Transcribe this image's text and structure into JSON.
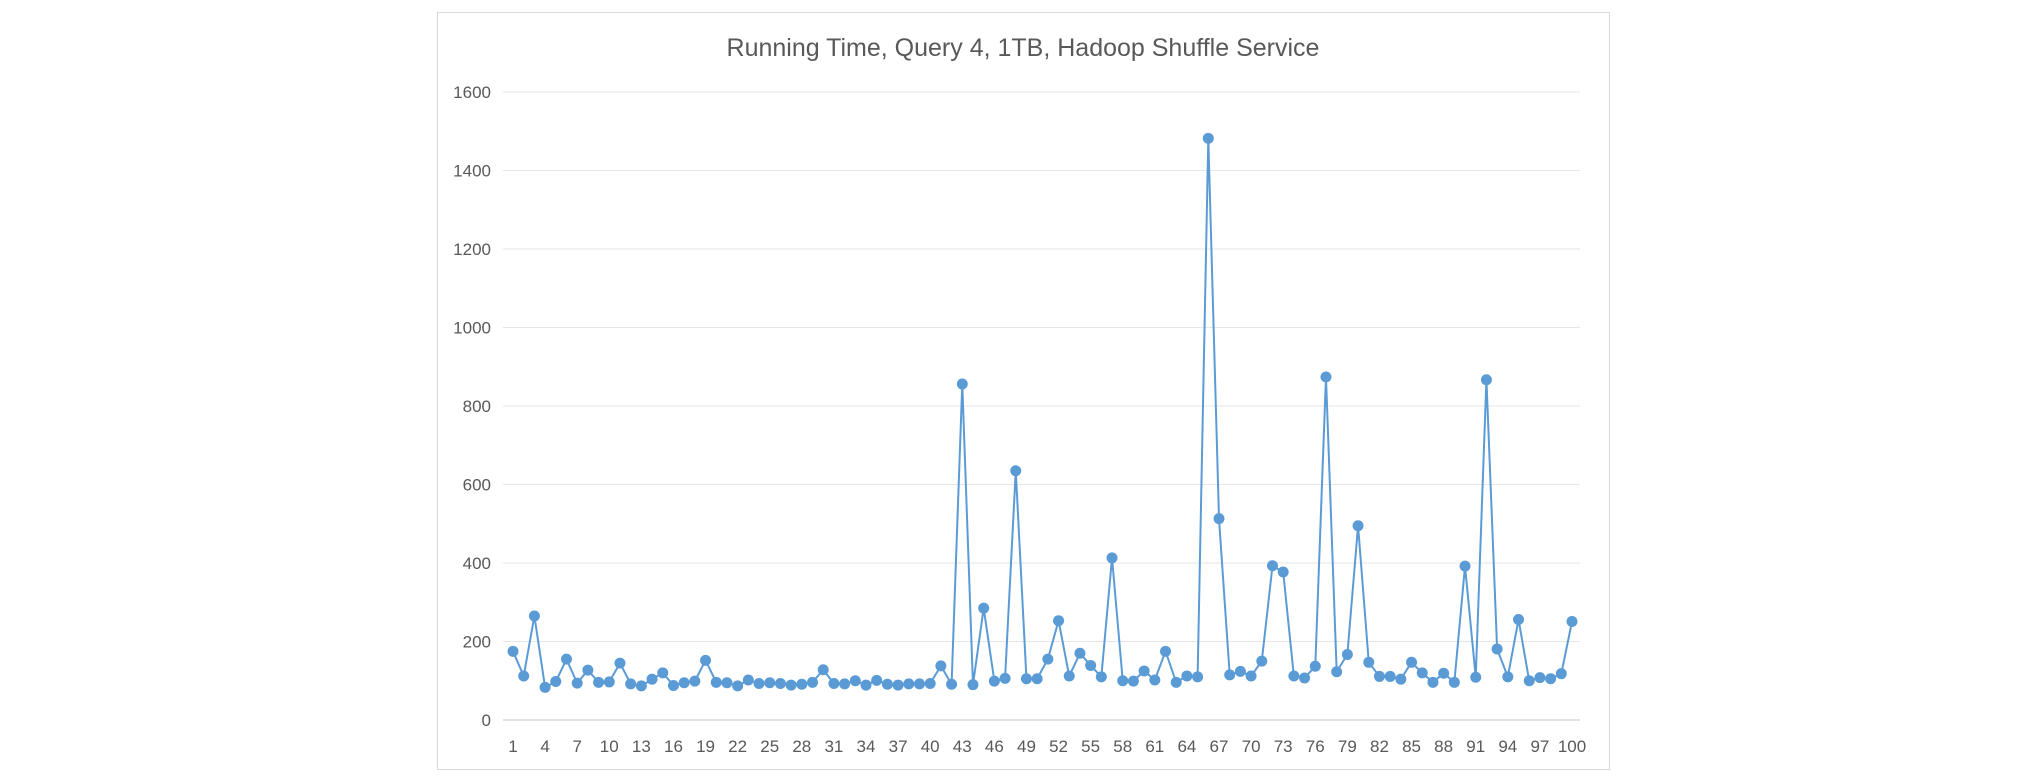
{
  "chart_data": {
    "type": "line",
    "title": "Running Time, Query 4, 1TB, Hadoop Shuffle Service",
    "xlabel": "",
    "ylabel": "",
    "ylim": [
      0,
      1600
    ],
    "yticks": [
      "0",
      "200",
      "400",
      "600",
      "800",
      "1000",
      "1200",
      "1400",
      "1600"
    ],
    "xticks": [
      "1",
      "4",
      "7",
      "10",
      "13",
      "16",
      "19",
      "22",
      "25",
      "28",
      "31",
      "34",
      "37",
      "40",
      "43",
      "46",
      "49",
      "52",
      "55",
      "58",
      "61",
      "64",
      "67",
      "70",
      "73",
      "76",
      "79",
      "82",
      "85",
      "88",
      "91",
      "94",
      "97",
      "100"
    ],
    "x": [
      1,
      2,
      3,
      4,
      5,
      6,
      7,
      8,
      9,
      10,
      11,
      12,
      13,
      14,
      15,
      16,
      17,
      18,
      19,
      20,
      21,
      22,
      23,
      24,
      25,
      26,
      27,
      28,
      29,
      30,
      31,
      32,
      33,
      34,
      35,
      36,
      37,
      38,
      39,
      40,
      41,
      42,
      43,
      44,
      45,
      46,
      47,
      48,
      49,
      50,
      51,
      52,
      53,
      54,
      55,
      56,
      57,
      58,
      59,
      60,
      61,
      62,
      63,
      64,
      65,
      66,
      67,
      68,
      69,
      70,
      71,
      72,
      73,
      74,
      75,
      76,
      77,
      78,
      79,
      80,
      81,
      82,
      83,
      84,
      85,
      86,
      87,
      88,
      89,
      90,
      91,
      92,
      93,
      94,
      95,
      96,
      97,
      98,
      99,
      100
    ],
    "series": [
      {
        "color": "#5b9bd5",
        "values": [
          175,
          112,
          265,
          83,
          98,
          155,
          94,
          127,
          96,
          97,
          145,
          92,
          87,
          104,
          120,
          88,
          95,
          99,
          152,
          96,
          95,
          87,
          102,
          93,
          95,
          93,
          89,
          91,
          96,
          128,
          93,
          92,
          100,
          89,
          101,
          91,
          89,
          92,
          92,
          93,
          138,
          91,
          856,
          90,
          285,
          99,
          106,
          635,
          105,
          105,
          155,
          253,
          112,
          170,
          139,
          110,
          413,
          100,
          99,
          125,
          102,
          175,
          96,
          112,
          110,
          1482,
          513,
          115,
          124,
          112,
          150,
          393,
          377,
          112,
          107,
          137,
          874,
          123,
          167,
          495,
          147,
          111,
          111,
          104,
          147,
          120,
          96,
          119,
          96,
          392,
          109,
          867,
          181,
          110,
          256,
          100,
          108,
          105,
          118,
          251
        ]
      }
    ],
    "grid": true,
    "legend": "none"
  }
}
